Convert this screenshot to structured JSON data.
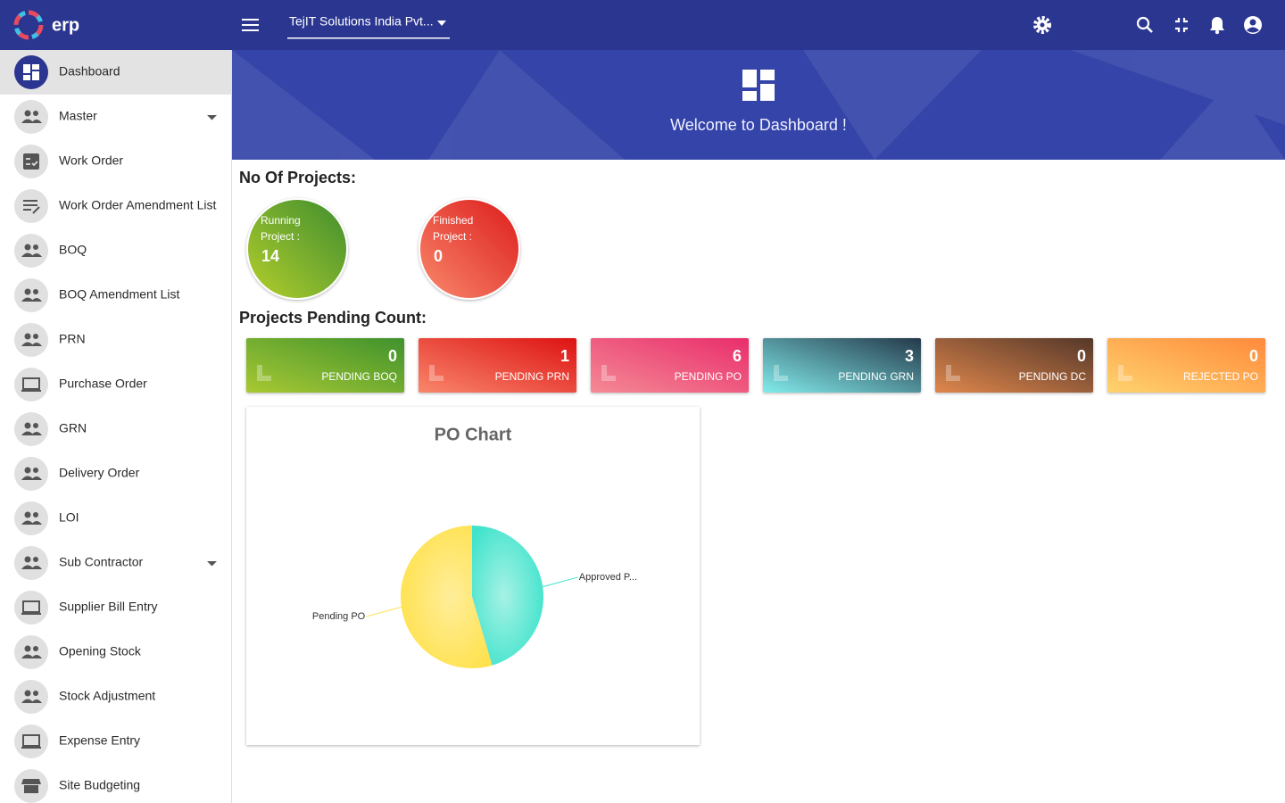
{
  "header": {
    "brand": "erp",
    "company": "TejIT Solutions India Pvt..."
  },
  "sidebar": {
    "items": [
      "Dashboard",
      "Master",
      "Work Order",
      "Work Order Amendment List",
      "BOQ",
      "BOQ Amendment List",
      "PRN",
      "Purchase Order",
      "GRN",
      "Delivery Order",
      "LOI",
      "Sub Contractor",
      "Supplier Bill Entry",
      "Opening Stock",
      "Stock Adjustment",
      "Expense Entry",
      "Site Budgeting"
    ]
  },
  "banner": {
    "title": "Welcome to Dashboard !"
  },
  "projects": {
    "heading": "No Of Projects:",
    "items": [
      {
        "label": "Running Project :",
        "value": "14"
      },
      {
        "label": "Finished Project :",
        "value": "0"
      }
    ]
  },
  "pending": {
    "heading": "Projects Pending Count:",
    "cards": [
      {
        "label": "PENDING BOQ",
        "count": "0"
      },
      {
        "label": "PENDING PRN",
        "count": "1"
      },
      {
        "label": "PENDING PO",
        "count": "6"
      },
      {
        "label": "PENDING GRN",
        "count": "3"
      },
      {
        "label": "PENDING DC",
        "count": "0"
      },
      {
        "label": "REJECTED PO",
        "count": "0"
      }
    ]
  },
  "chart_data": {
    "type": "pie",
    "title": "PO Chart",
    "categories": [
      "Approved P...",
      "Pending PO"
    ],
    "values": [
      5,
      6
    ],
    "colors": [
      "#3fe3cc",
      "#ffe14d"
    ]
  }
}
